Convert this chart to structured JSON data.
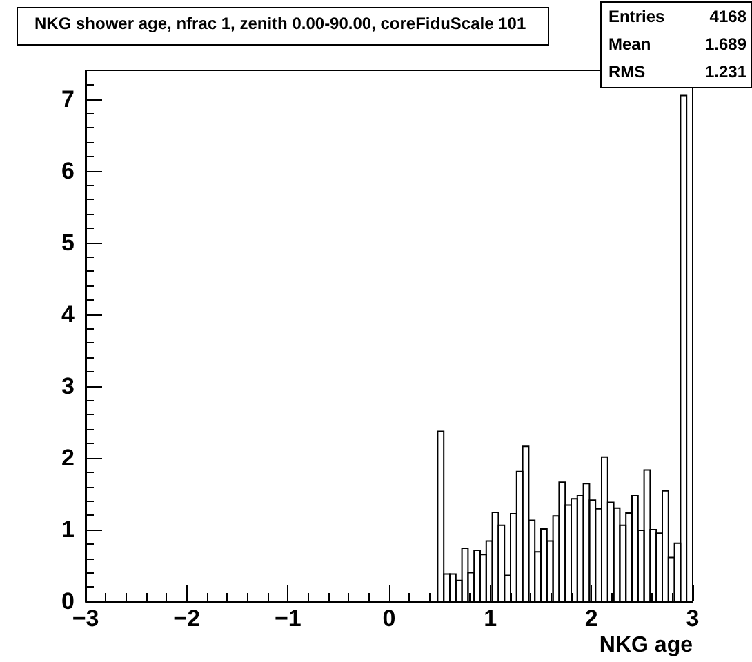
{
  "chart_data": {
    "type": "histogram",
    "title": "NKG shower age, nfrac 1, zenith 0.00-90.00, coreFiduScale 101",
    "xlabel": "NKG age",
    "annotations": [
      "Entries 4168",
      "Mean 1.689",
      "RMS 1.231"
    ],
    "bins": [
      -3,
      -2.94,
      -2.88,
      -2.82,
      -2.76,
      -2.7,
      -2.64,
      -2.58,
      -2.52,
      -2.46,
      -2.4,
      -2.34,
      -2.28,
      -2.22,
      -2.16,
      -2.1,
      -2.04,
      -1.98,
      -1.92,
      -1.86,
      -1.8,
      -1.74,
      -1.68,
      -1.62,
      -1.56,
      -1.5,
      -1.44,
      -1.38,
      -1.32,
      -1.26,
      -1.2,
      -1.14,
      -1.08,
      -1.02,
      -0.96,
      -0.9,
      -0.84,
      -0.78,
      -0.72,
      -0.66,
      -0.6,
      -0.54,
      -0.48,
      -0.42,
      -0.36,
      -0.3,
      -0.24,
      -0.18,
      -0.12,
      -0.06,
      0,
      0.06,
      0.12,
      0.18,
      0.24,
      0.3,
      0.36,
      0.42,
      0.48,
      0.54,
      0.6,
      0.66,
      0.72,
      0.78,
      0.84,
      0.9,
      0.96,
      1.02,
      1.08,
      1.14,
      1.2,
      1.26,
      1.32,
      1.38,
      1.44,
      1.5,
      1.56,
      1.62,
      1.68,
      1.74,
      1.8,
      1.86,
      1.92,
      1.98,
      2.04,
      2.1,
      2.16,
      2.22,
      2.28,
      2.34,
      2.4,
      2.46,
      2.52,
      2.58,
      2.64,
      2.7,
      2.76,
      2.82,
      2.88,
      2.94,
      3
    ],
    "values": [
      0,
      0,
      0,
      0,
      0,
      0,
      0,
      0,
      0,
      0,
      0,
      0,
      0,
      0,
      0,
      0,
      0,
      0,
      0,
      0,
      0,
      0,
      0,
      0,
      0,
      0,
      0,
      0,
      0,
      0,
      0,
      0,
      0,
      0,
      0,
      0,
      0,
      0,
      0,
      0,
      0,
      0,
      0,
      0,
      0,
      0,
      0,
      0,
      0,
      0,
      0,
      0,
      0,
      0,
      0,
      0,
      0,
      0,
      2.37,
      0.38,
      0.38,
      0.29,
      0.74,
      0.4,
      0.71,
      0.65,
      0.84,
      1.24,
      1.06,
      0.36,
      1.22,
      1.81,
      2.16,
      1.13,
      0.69,
      1.01,
      0.84,
      1.19,
      1.66,
      1.34,
      1.43,
      1.47,
      1.64,
      1.41,
      1.29,
      2.01,
      1.38,
      1.3,
      1.06,
      1.23,
      1.47,
      0.99,
      1.83,
      1,
      0.95,
      1.54,
      0.61,
      0.81,
      7.05,
      0
    ],
    "color": "#000000",
    "xlim": [
      -3,
      3
    ],
    "xticks": [
      -3,
      -2,
      -1,
      0,
      1,
      2,
      3
    ],
    "ylim": [
      0,
      7.4
    ],
    "yticks": [
      0,
      1,
      2,
      3,
      4,
      5,
      6,
      7
    ],
    "grid": false
  }
}
